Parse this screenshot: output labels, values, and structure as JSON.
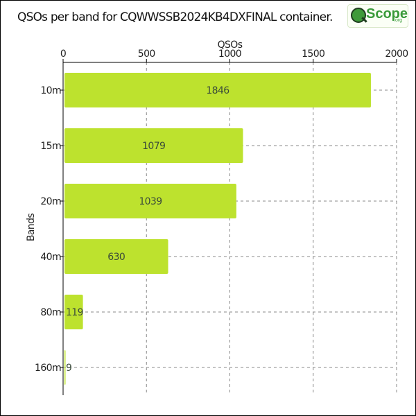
{
  "logo": {
    "text": "Scope",
    "sub": ".org"
  },
  "chart_data": {
    "type": "bar",
    "orientation": "horizontal",
    "title": "QSOs per band for CQWWSSB2024KB4DXFINAL container.",
    "xlabel": "QSOs",
    "ylabel": "Bands",
    "categories": [
      "10m",
      "15m",
      "20m",
      "40m",
      "80m",
      "160m"
    ],
    "values": [
      1846,
      1079,
      1039,
      630,
      119,
      9
    ],
    "xlim": [
      0,
      2000
    ],
    "xticks": [
      0,
      500,
      1000,
      1500,
      2000
    ],
    "x_axis_position": "top",
    "grid": true,
    "bar_color": "#bde22e",
    "show_value_labels": true
  }
}
